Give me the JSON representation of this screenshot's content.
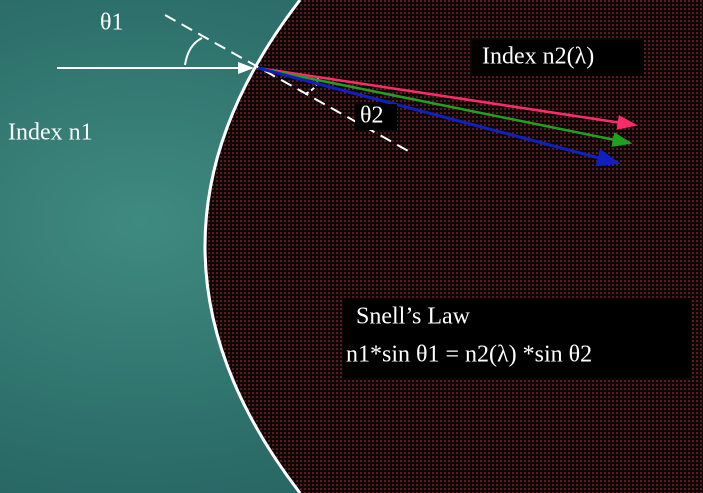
{
  "labels": {
    "theta1": "θ1",
    "index_n1": "Index n1",
    "index_n2": "Index n2(λ)",
    "theta2": "θ2",
    "law_title": "Snell’s Law",
    "law_equation": "n1*sin θ1 = n2(λ) *sin θ2"
  }
}
